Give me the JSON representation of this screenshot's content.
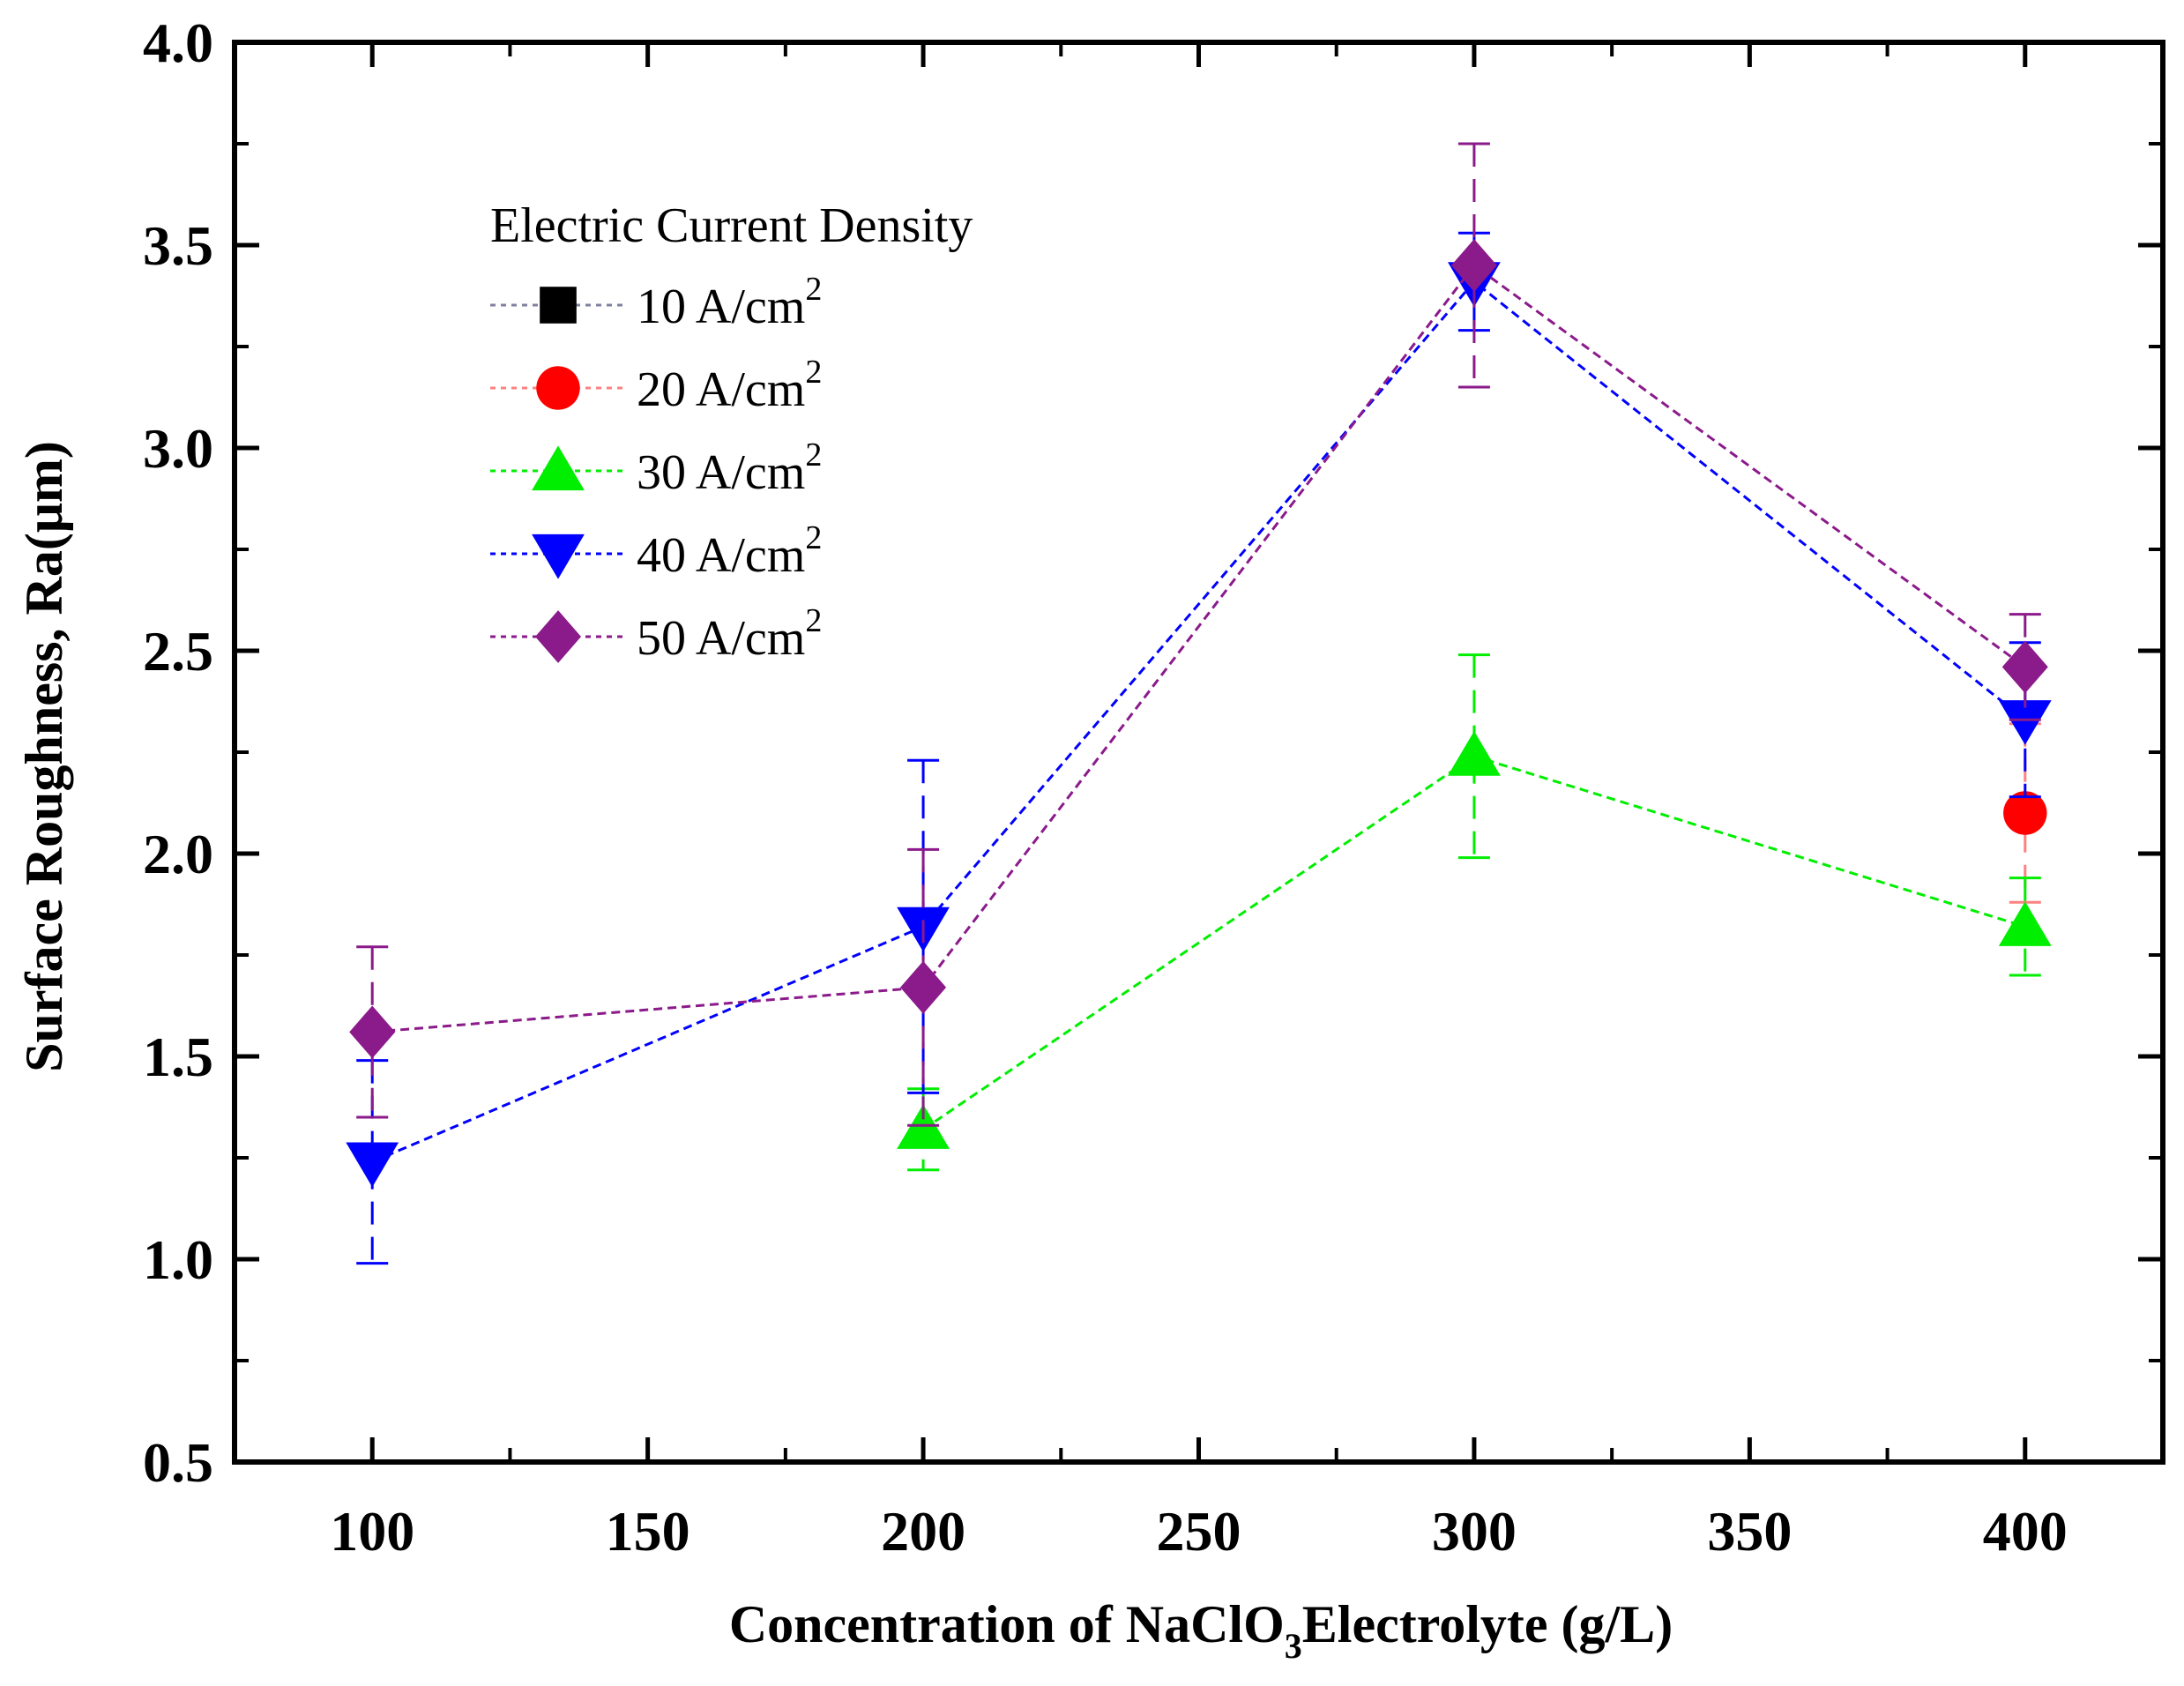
{
  "chart_data": {
    "type": "line",
    "xlabel_main": "Concentration of NaClO",
    "xlabel_sub": "3",
    "xlabel_end": "Electrolyte (g/L)",
    "ylabel": "Surface Roughness, Ra(μm)",
    "xlim": [
      75,
      425
    ],
    "ylim": [
      0.5,
      4.0
    ],
    "xticks": [
      100,
      150,
      200,
      250,
      300,
      350,
      400
    ],
    "yticks": [
      0.5,
      1.0,
      1.5,
      2.0,
      2.5,
      3.0,
      3.5,
      4.0
    ],
    "ytick_labels": [
      "0.5",
      "1.0",
      "1.5",
      "2.0",
      "2.5",
      "3.0",
      "3.5",
      "4.0"
    ],
    "legend_title": "Electric Current Density",
    "legend_position": "top-left",
    "series": [
      {
        "name": "10 A/cm",
        "sup": "2",
        "marker": "square",
        "color": "#000000",
        "line": "#8080a0",
        "points": []
      },
      {
        "name": "20 A/cm",
        "sup": "2",
        "marker": "circle",
        "color": "#ff0000",
        "line": "#ff8080",
        "points": [
          {
            "x": 400,
            "y": 2.1,
            "err": 0.22
          }
        ]
      },
      {
        "name": "30 A/cm",
        "sup": "2",
        "marker": "triangle-up",
        "color": "#00ee00",
        "line": "#00ee00",
        "points": [
          {
            "x": 200,
            "y": 1.32,
            "err": 0.1
          },
          {
            "x": 300,
            "y": 2.24,
            "err": 0.25
          },
          {
            "x": 400,
            "y": 1.82,
            "err": 0.12
          }
        ]
      },
      {
        "name": "40 A/cm",
        "sup": "2",
        "marker": "triangle-down",
        "color": "#0000ff",
        "line": "#0000ff",
        "points": [
          {
            "x": 100,
            "y": 1.24,
            "err": 0.25
          },
          {
            "x": 200,
            "y": 1.82,
            "err": 0.41
          },
          {
            "x": 300,
            "y": 3.41,
            "err": 0.12
          },
          {
            "x": 400,
            "y": 2.33,
            "err": 0.19
          }
        ]
      },
      {
        "name": "50 A/cm",
        "sup": "2",
        "marker": "diamond",
        "color": "#8b1a8b",
        "line": "#8b1a8b",
        "points": [
          {
            "x": 100,
            "y": 1.56,
            "err": 0.21
          },
          {
            "x": 200,
            "y": 1.67,
            "err": 0.34
          },
          {
            "x": 300,
            "y": 3.45,
            "err": 0.3
          },
          {
            "x": 400,
            "y": 2.46,
            "err": 0.13
          }
        ]
      }
    ]
  }
}
